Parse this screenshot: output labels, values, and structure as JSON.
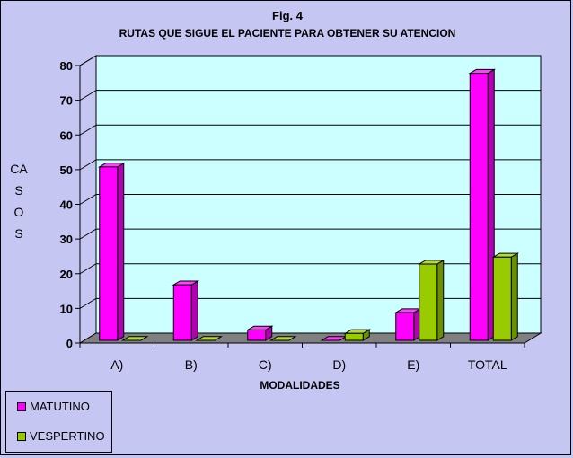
{
  "chart_data": {
    "type": "bar",
    "figure_label": "Fig. 4",
    "title": "RUTAS QUE SIGUE EL PACIENTE PARA OBTENER SU ATENCION",
    "xlabel": "MODALIDADES",
    "ylabel": "CASOS",
    "ylim": [
      0,
      80
    ],
    "yticks": [
      "0",
      "10",
      "20",
      "30",
      "40",
      "50",
      "60",
      "70",
      "80"
    ],
    "grid": true,
    "legend_position": "bottom-left",
    "categories": [
      "A)",
      "B)",
      "C)",
      "D)",
      "E)",
      "TOTAL"
    ],
    "series": [
      {
        "name": "MATUTINO",
        "color": "#ff00ff",
        "values": [
          50,
          16,
          3,
          0,
          8,
          77
        ]
      },
      {
        "name": "VESPERTINO",
        "color": "#99cc00",
        "values": [
          0,
          0,
          0,
          2,
          22,
          24
        ]
      }
    ],
    "plot_colors": {
      "wall": "#ccffff",
      "floor": "#808080",
      "background": "#c6c6f2"
    }
  }
}
